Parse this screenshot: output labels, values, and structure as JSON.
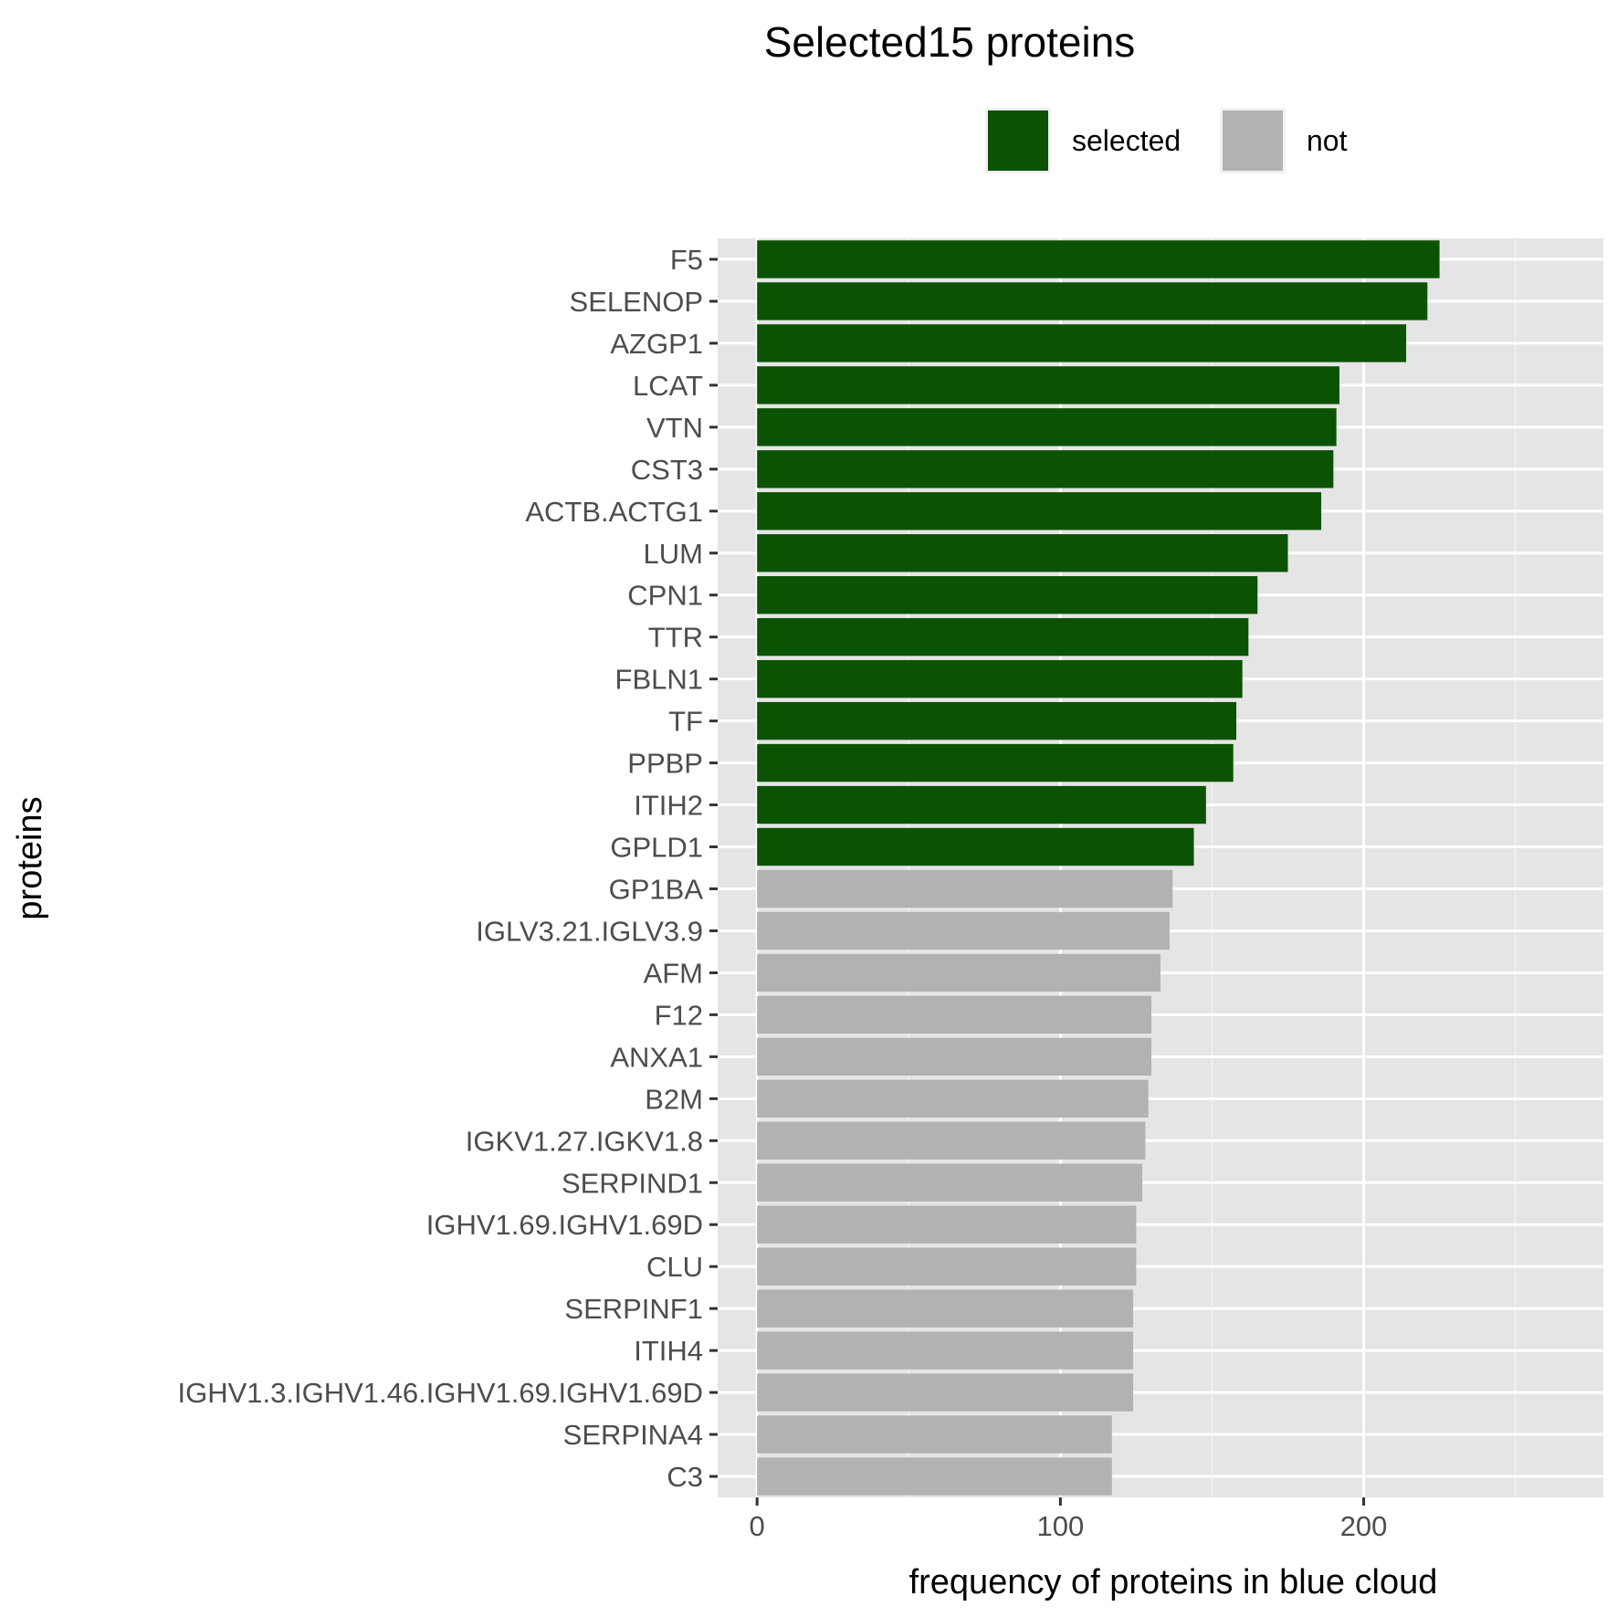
{
  "chart_data": {
    "type": "bar",
    "orientation": "horizontal",
    "title": "Selected15 proteins",
    "xlabel": "frequency of proteins in blue cloud",
    "ylabel": "proteins",
    "xlim": [
      -13,
      279
    ],
    "x_ticks": [
      0,
      100,
      200
    ],
    "grid": true,
    "legend_position": "top",
    "legend": [
      {
        "key": "selected",
        "label": "selected",
        "color": "#0b5202"
      },
      {
        "key": "not",
        "label": "not",
        "color": "#b2b2b2"
      }
    ],
    "categories": [
      "F5",
      "SELENOP",
      "AZGP1",
      "LCAT",
      "VTN",
      "CST3",
      "ACTB.ACTG1",
      "LUM",
      "CPN1",
      "TTR",
      "FBLN1",
      "TF",
      "PPBP",
      "ITIH2",
      "GPLD1",
      "GP1BA",
      "IGLV3.21.IGLV3.9",
      "AFM",
      "F12",
      "ANXA1",
      "B2M",
      "IGKV1.27.IGKV1.8",
      "SERPIND1",
      "IGHV1.69.IGHV1.69D",
      "CLU",
      "SERPINF1",
      "ITIH4",
      "IGHV1.3.IGHV1.46.IGHV1.69.IGHV1.69D",
      "SERPINA4",
      "C3"
    ],
    "values": [
      225,
      221,
      214,
      192,
      191,
      190,
      186,
      175,
      165,
      162,
      160,
      158,
      157,
      148,
      144,
      137,
      136,
      133,
      130,
      130,
      129,
      128,
      127,
      125,
      125,
      124,
      124,
      124,
      117,
      117
    ],
    "groups": [
      "selected",
      "selected",
      "selected",
      "selected",
      "selected",
      "selected",
      "selected",
      "selected",
      "selected",
      "selected",
      "selected",
      "selected",
      "selected",
      "selected",
      "selected",
      "not",
      "not",
      "not",
      "not",
      "not",
      "not",
      "not",
      "not",
      "not",
      "not",
      "not",
      "not",
      "not",
      "not",
      "not"
    ]
  }
}
